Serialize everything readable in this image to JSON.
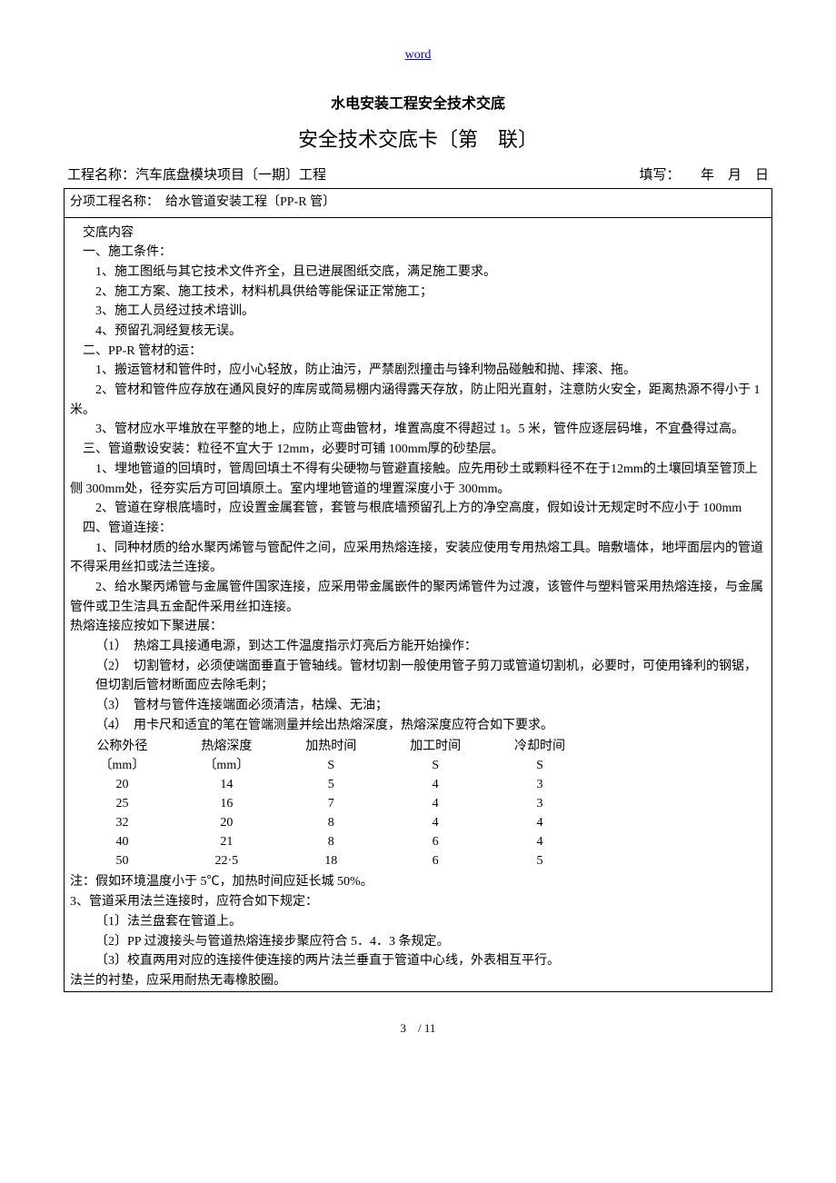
{
  "header_word": "word",
  "title1": "水电安装工程安全技术交底",
  "title2": "安全技术交底卡〔第　联〕",
  "meta": {
    "left": "工程名称：汽车底盘模块项目〔一期〕工程",
    "right": "填写：　　年　月　日"
  },
  "subheader": "分项工程名称：　给水管道安装工程〔PP-R 管〕",
  "content_heading": "交底内容",
  "sec1": {
    "title": "一、施工条件：",
    "i1": "1、施工图纸与其它技术文件齐全，且已进展图纸交底，满足施工要求。",
    "i2": "2、施工方案、施工技术，材料机具供给等能保证正常施工；",
    "i3": "3、施工人员经过技术培训。",
    "i4": "4、预留孔洞经复核无误。"
  },
  "sec2": {
    "title": "二、PP-R 管材的运：",
    "i1": "1、搬运管材和管件时，应小心轻放，防止油污，严禁剧烈撞击与锋利物品碰触和抛、摔滚、拖。",
    "i2": "2、管材和管件应存放在通风良好的库房或简易棚内涵得露天存放，防止阳光直射，注意防火安全，距离热源不得小于 1 米。",
    "i3": "3、管材应水平堆放在平整的地上，应防止弯曲管材，堆置高度不得超过 1。5 米，管件应逐层码堆，不宜叠得过高。"
  },
  "sec3": {
    "title": "三、管道敷设安装：粒径不宜大于 12mm，必要时可铺 100mm厚的砂垫层。",
    "i1": "1、埋地管道的回填时，管周回填土不得有尖硬物与管避直接触。应先用砂土或颗料径不在于12mm的土壤回填至管顶上侧 300mm处，径夯实后方可回填原土。室内埋地管道的埋置深度小于 300mm。",
    "i2": "2、管道在穿根底墙时，应设置金属套管，套管与根底墙预留孔上方的净空高度，假如设计无规定时不应小于 100mm"
  },
  "sec4": {
    "title": "四、管道连接：",
    "i1": "1、同种材质的给水聚丙烯管与管配件之间，应采用热熔连接，安装应使用专用热熔工具。暗敷墙体，地坪面层内的管道不得采用丝扣或法兰连接。",
    "i2": "2、给水聚丙烯管与金属管件国家连接，应采用带金属嵌件的聚丙烯管件为过渡，该管件与塑料管采用热熔连接，与金属管件或卫生洁具五金配件采用丝扣连接。",
    "intro": "热熔连接应按如下聚进展：",
    "s1": "（1）　热熔工具接通电源，到达工件温度指示灯亮后方能开始操作：",
    "s2": "（2）　切割管材，必须使端面垂直于管轴线。管材切割一般使用管子剪刀或管道切割机，必要时，可使用锋利的钢锯，但切割后管材断面应去除毛刺；",
    "s3": "（3）　管材与管件连接端面必须清洁，枯燥、无油；",
    "s4": "（4）　用卡尺和适宜的笔在管端测量并绘出热熔深度，热熔深度应符合如下要求。"
  },
  "heat_table": {
    "headers": {
      "c1a": "公称外径",
      "c1b": "〔mm〕",
      "c2a": "热熔深度",
      "c2b": "〔mm〕",
      "c3a": "加热时间",
      "c3b": "S",
      "c4a": "加工时间",
      "c4b": "S",
      "c5a": "冷却时间",
      "c5b": "S"
    },
    "rows": [
      {
        "c1": "20",
        "c2": "14",
        "c3": "5",
        "c4": "4",
        "c5": "3"
      },
      {
        "c1": "25",
        "c2": "16",
        "c3": "7",
        "c4": "4",
        "c5": "3"
      },
      {
        "c1": "32",
        "c2": "20",
        "c3": "8",
        "c4": "4",
        "c5": "4"
      },
      {
        "c1": "40",
        "c2": "21",
        "c3": "8",
        "c4": "6",
        "c5": "4"
      },
      {
        "c1": "50",
        "c2": "22·5",
        "c3": "18",
        "c4": "6",
        "c5": "5"
      }
    ]
  },
  "note": "注：假如环境温度小于 5℃，加热时间应延长城 50%。",
  "sec5": {
    "title": "3、管道采用法兰连接时，应符合如下规定：",
    "i1": "〔1〕法兰盘套在管道上。",
    "i2": "〔2〕PP 过渡接头与管道热熔连接步聚应符合 5．4．3 条规定。",
    "i3": "〔3〕校直两用对应的连接件使连接的两片法兰垂直于管道中心线，外表相互平行。",
    "i4": "法兰的衬垫，应采用耐热无毒橡胶圈。"
  },
  "pagefoot": "3　/ 11"
}
